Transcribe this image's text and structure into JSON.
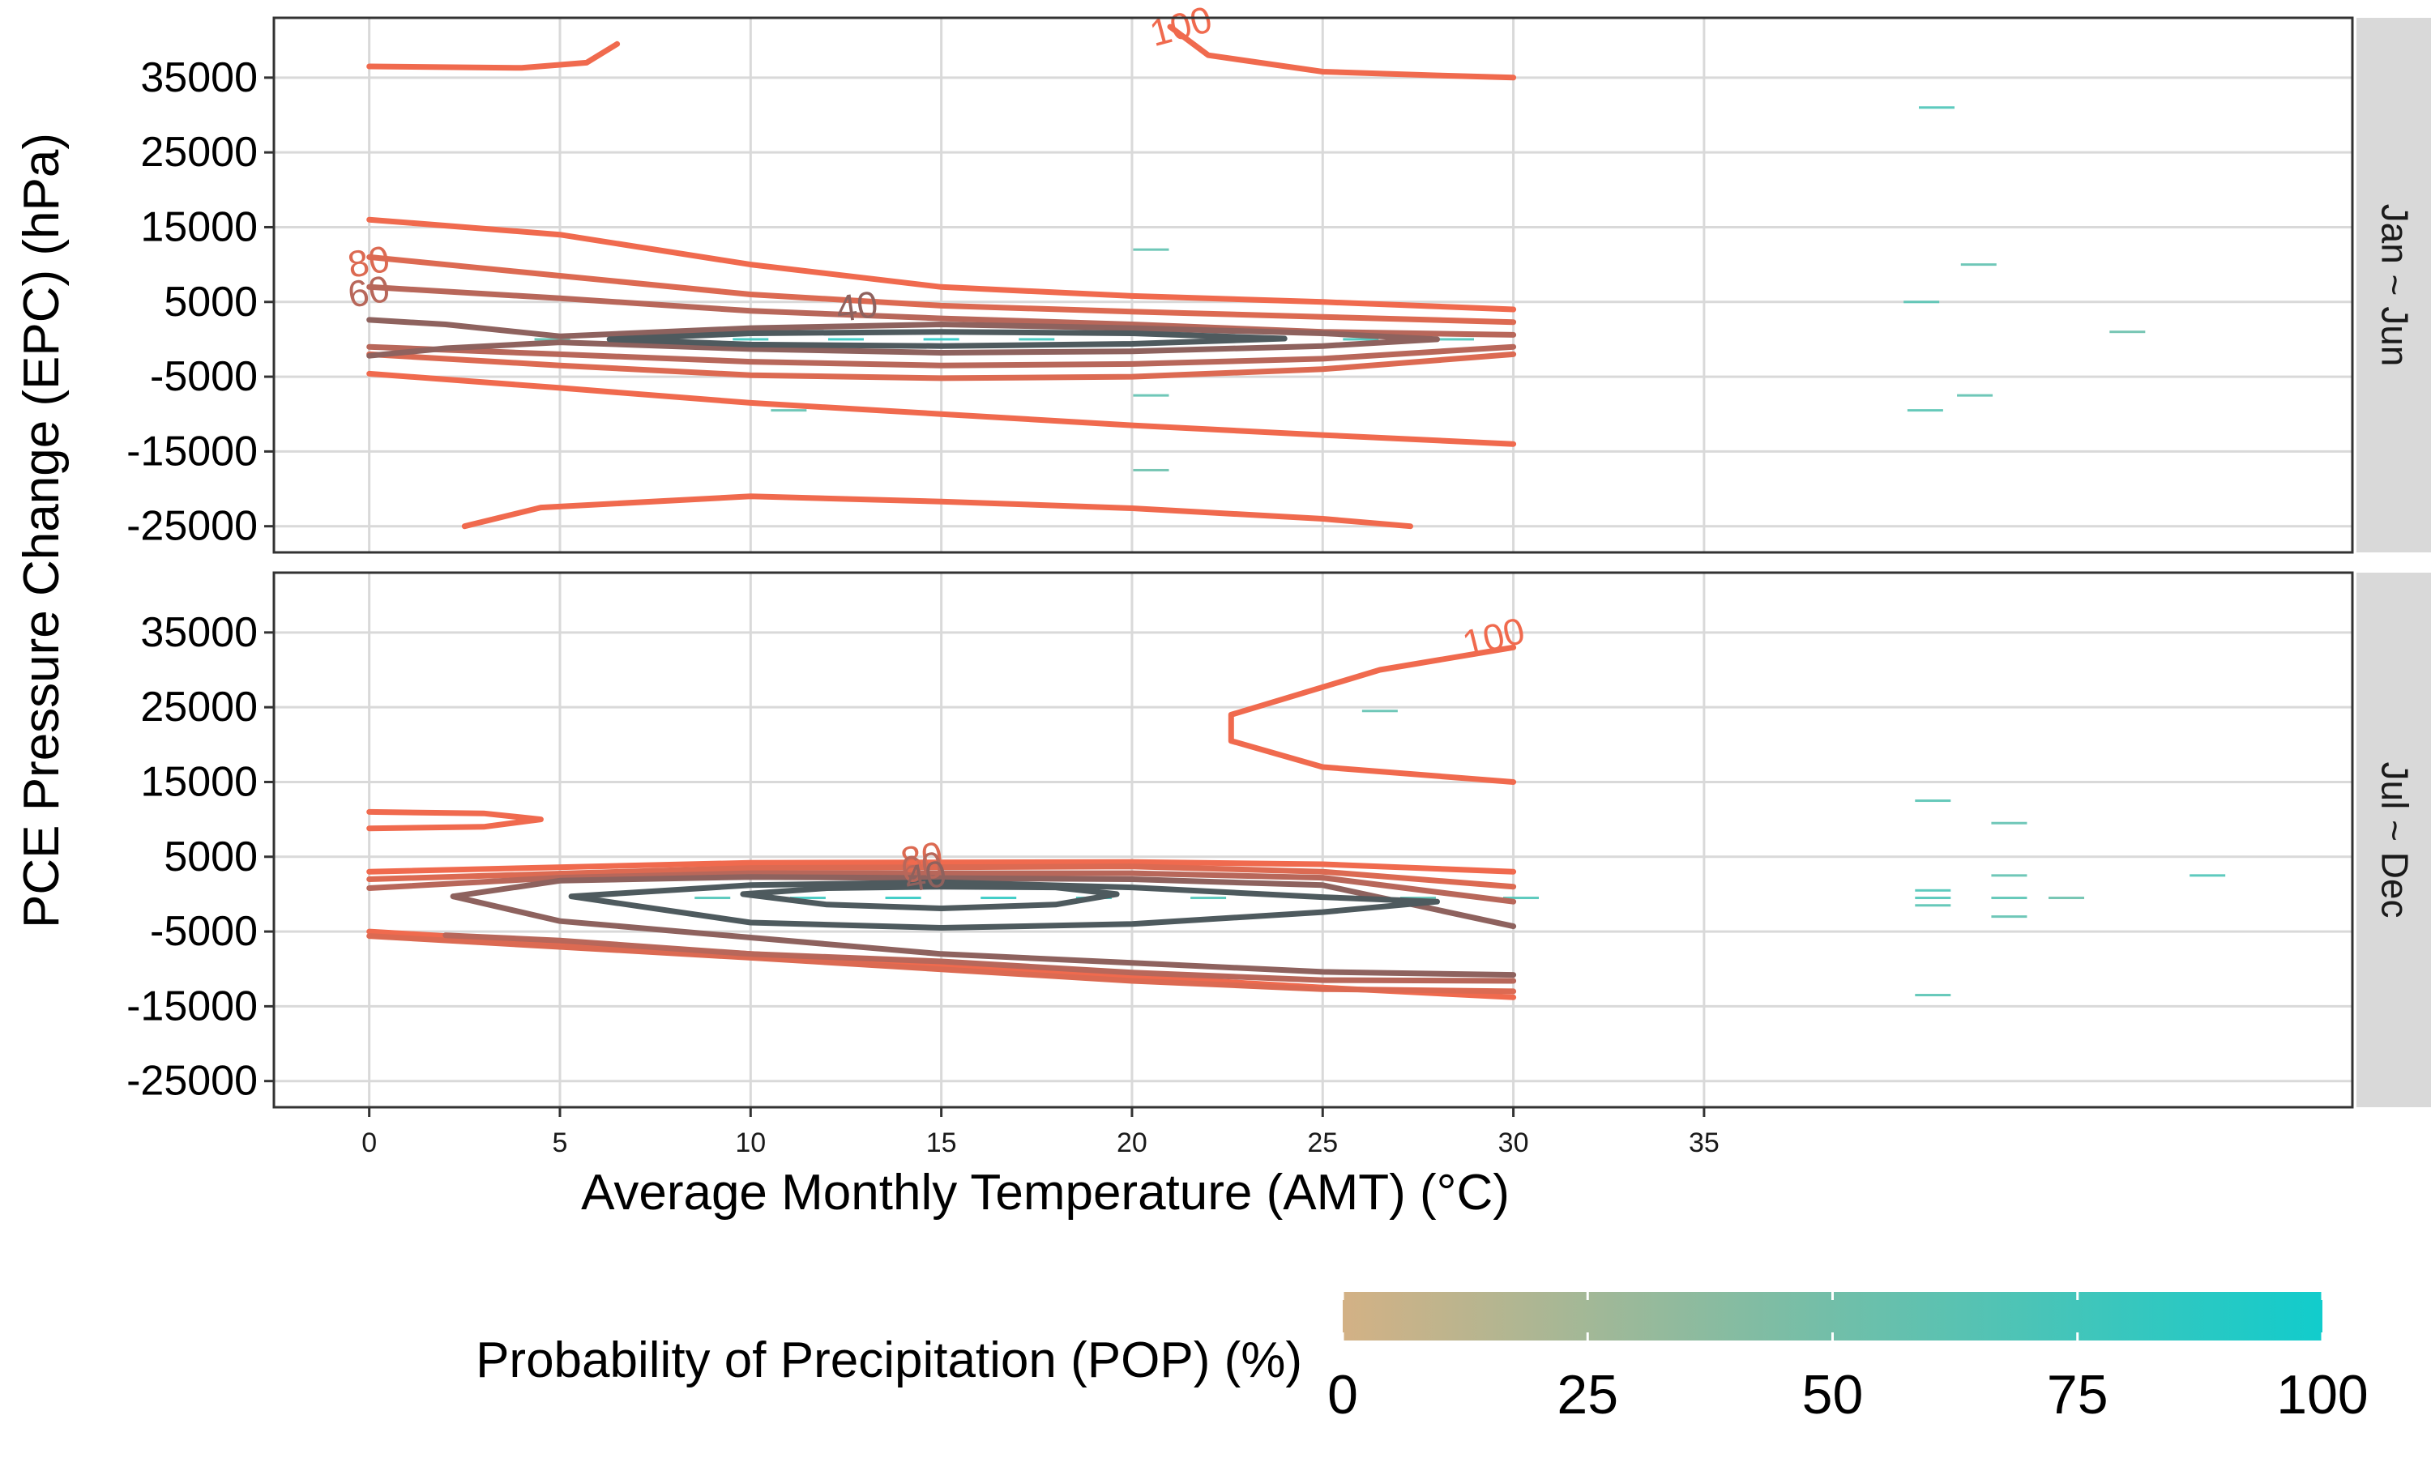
{
  "chart_data": {
    "type": "contour",
    "xlabel": "Average Monthly Temperature (AMT) (°C)",
    "ylabel": "PCE Pressure Change (EPC) (hPa)",
    "x_ticks": [
      0,
      5,
      10,
      15,
      20,
      25,
      30,
      35
    ],
    "y_ticks": [
      35000,
      25000,
      15000,
      5000,
      -5000,
      -15000,
      -25000
    ],
    "xlim": [
      -2.5,
      52
    ],
    "ylim": [
      -28500,
      43000
    ],
    "grid": true,
    "legend": {
      "title": "Probability of Precipitation (POP) (%)",
      "position": "bottom",
      "scale": [
        0,
        100
      ],
      "ticks": [
        0,
        25,
        50,
        75,
        100
      ],
      "color_low": "#d3b185",
      "color_high": "#11cccc"
    },
    "contour_colors": {
      "100": "#f06a4e",
      "80": "#dc6a52",
      "60": "#b8675a",
      "40": "#8e625e",
      "20": "#4e5a5e"
    },
    "panels": [
      {
        "strip": "Jan ~ Jun",
        "contour_labels": [
          {
            "text": "100",
            "x": 21.3,
            "y": 41500,
            "angle": -15,
            "level": "100"
          },
          {
            "text": "80",
            "x": 0,
            "y": 10000,
            "angle": -10,
            "level": "80"
          },
          {
            "text": "60",
            "x": 0,
            "y": 6000,
            "angle": -10,
            "level": "60"
          },
          {
            "text": "40",
            "x": 12.8,
            "y": 4000,
            "angle": -8,
            "level": "40"
          }
        ],
        "contours": [
          {
            "level": "100",
            "points": [
              [
                0,
                36500
              ],
              [
                4,
                36300
              ],
              [
                5.7,
                37000
              ],
              [
                6.5,
                39500
              ]
            ]
          },
          {
            "level": "100",
            "points": [
              [
                21,
                41800
              ],
              [
                22,
                38000
              ],
              [
                25,
                35800
              ],
              [
                28,
                35300
              ],
              [
                30,
                35000
              ]
            ]
          },
          {
            "level": "100",
            "points": [
              [
                0,
                16000
              ],
              [
                5,
                14000
              ],
              [
                10,
                10000
              ],
              [
                15,
                7000
              ],
              [
                20,
                5800
              ],
              [
                25,
                5000
              ],
              [
                30,
                4000
              ]
            ]
          },
          {
            "level": "100",
            "points": [
              [
                0,
                -4600
              ],
              [
                5,
                -6500
              ],
              [
                10,
                -8500
              ],
              [
                15,
                -10000
              ],
              [
                20,
                -11500
              ],
              [
                25,
                -12800
              ],
              [
                30,
                -14000
              ]
            ]
          },
          {
            "level": "100",
            "points": [
              [
                2.5,
                -25000
              ],
              [
                4.5,
                -22500
              ],
              [
                10,
                -21000
              ],
              [
                15,
                -21700
              ],
              [
                20,
                -22600
              ],
              [
                25,
                -24000
              ],
              [
                27.3,
                -25000
              ]
            ]
          },
          {
            "level": "80",
            "points": [
              [
                0,
                11000
              ],
              [
                5,
                8500
              ],
              [
                10,
                6000
              ],
              [
                15,
                4500
              ],
              [
                20,
                3700
              ],
              [
                25,
                3000
              ],
              [
                30,
                2300
              ]
            ]
          },
          {
            "level": "80",
            "points": [
              [
                30,
                -2000
              ],
              [
                25,
                -4000
              ],
              [
                20,
                -5000
              ],
              [
                15,
                -5200
              ],
              [
                10,
                -4800
              ],
              [
                5,
                -3500
              ],
              [
                0,
                -2000
              ]
            ]
          },
          {
            "level": "60",
            "points": [
              [
                0,
                7000
              ],
              [
                5,
                5500
              ],
              [
                10,
                3800
              ],
              [
                15,
                2800
              ],
              [
                20,
                2000
              ],
              [
                25,
                1000
              ],
              [
                30,
                600
              ]
            ]
          },
          {
            "level": "60",
            "points": [
              [
                30,
                -1000
              ],
              [
                25,
                -2600
              ],
              [
                20,
                -3300
              ],
              [
                15,
                -3500
              ],
              [
                10,
                -3000
              ],
              [
                5,
                -2000
              ],
              [
                0,
                -1000
              ]
            ]
          },
          {
            "level": "40",
            "points": [
              [
                0,
                2600
              ],
              [
                2,
                2000
              ],
              [
                5,
                400
              ],
              [
                10,
                1500
              ],
              [
                15,
                2000
              ],
              [
                20,
                1500
              ],
              [
                25,
                800
              ],
              [
                28,
                0
              ],
              [
                25,
                -900
              ],
              [
                20,
                -1600
              ],
              [
                15,
                -1800
              ],
              [
                10,
                -1300
              ],
              [
                5,
                -400
              ],
              [
                2,
                -1200
              ],
              [
                0,
                -2200
              ]
            ]
          },
          {
            "level": "20",
            "points": [
              [
                6.3,
                0
              ],
              [
                10,
                800
              ],
              [
                15,
                1000
              ],
              [
                20,
                800
              ],
              [
                24,
                100
              ],
              [
                20,
                -600
              ],
              [
                15,
                -900
              ],
              [
                10,
                -700
              ],
              [
                6.3,
                0
              ]
            ]
          }
        ],
        "cells": [
          {
            "x": 20.5,
            "y": 12000,
            "v": 60
          },
          {
            "x": 20.5,
            "y": -7500,
            "v": 60
          },
          {
            "x": 20.5,
            "y": -17500,
            "v": 55
          },
          {
            "x": 11,
            "y": -9500,
            "v": 60
          },
          {
            "x": 40.7,
            "y": 5000,
            "v": 65
          },
          {
            "x": 41.1,
            "y": 31000,
            "v": 70
          },
          {
            "x": 42.2,
            "y": 10000,
            "v": 60
          },
          {
            "x": 40.8,
            "y": -9500,
            "v": 65
          },
          {
            "x": 42.1,
            "y": -7500,
            "v": 60
          },
          {
            "x": 46.1,
            "y": 1000,
            "v": 55
          },
          {
            "x": 7.5,
            "y": 0,
            "v": 75
          },
          {
            "x": 10,
            "y": 0,
            "v": 80
          },
          {
            "x": 12.5,
            "y": 0,
            "v": 85
          },
          {
            "x": 15,
            "y": 0,
            "v": 90
          },
          {
            "x": 17.5,
            "y": 0,
            "v": 80
          },
          {
            "x": 22.5,
            "y": 0,
            "v": 70
          },
          {
            "x": 26,
            "y": 0,
            "v": 75
          },
          {
            "x": 28.5,
            "y": 0,
            "v": 70
          },
          {
            "x": 4.8,
            "y": 0,
            "v": 60
          }
        ]
      },
      {
        "strip": "Jul ~ Dec",
        "contour_labels": [
          {
            "text": "100",
            "x": 29.5,
            "y": 34000,
            "angle": -14,
            "level": "100"
          },
          {
            "text": "80",
            "x": 14.5,
            "y": 4500,
            "angle": -10,
            "level": "80"
          },
          {
            "text": "60",
            "x": 14.5,
            "y": 3200,
            "angle": -10,
            "level": "60"
          },
          {
            "text": "40",
            "x": 14.6,
            "y": 2000,
            "angle": -10,
            "level": "40"
          }
        ],
        "contours": [
          {
            "level": "100",
            "points": [
              [
                30,
                33000
              ],
              [
                26.5,
                30000
              ],
              [
                22.6,
                24000
              ],
              [
                22.6,
                20500
              ],
              [
                25,
                17000
              ],
              [
                30,
                15000
              ]
            ]
          },
          {
            "level": "100",
            "points": [
              [
                0,
                11000
              ],
              [
                3,
                10800
              ],
              [
                4.5,
                10000
              ],
              [
                3,
                9000
              ],
              [
                0,
                8800
              ]
            ]
          },
          {
            "level": "100",
            "points": [
              [
                0,
                3000
              ],
              [
                10,
                4200
              ],
              [
                20,
                4300
              ],
              [
                25,
                4000
              ],
              [
                30,
                3000
              ]
            ]
          },
          {
            "level": "100",
            "points": [
              [
                0,
                -5000
              ],
              [
                10,
                -8000
              ],
              [
                20,
                -11000
              ],
              [
                25,
                -12500
              ],
              [
                30,
                -13800
              ]
            ]
          },
          {
            "level": "80",
            "points": [
              [
                0,
                2000
              ],
              [
                10,
                3500
              ],
              [
                20,
                3700
              ],
              [
                25,
                3000
              ],
              [
                30,
                1000
              ]
            ]
          },
          {
            "level": "80",
            "points": [
              [
                0,
                -5600
              ],
              [
                10,
                -8500
              ],
              [
                20,
                -11600
              ],
              [
                25,
                -12700
              ],
              [
                30,
                -13000
              ]
            ]
          },
          {
            "level": "60",
            "points": [
              [
                0,
                800
              ],
              [
                5,
                2200
              ],
              [
                10,
                2800
              ],
              [
                20,
                2800
              ],
              [
                25,
                2200
              ],
              [
                30,
                -1000
              ]
            ]
          },
          {
            "level": "60",
            "points": [
              [
                30,
                -11600
              ],
              [
                25,
                -11500
              ],
              [
                20,
                -10500
              ],
              [
                15,
                -9000
              ],
              [
                10,
                -8000
              ],
              [
                5,
                -6200
              ],
              [
                2,
                -5500
              ]
            ]
          },
          {
            "level": "40",
            "points": [
              [
                2.2,
                -300
              ],
              [
                5,
                1800
              ],
              [
                10,
                2300
              ],
              [
                20,
                2000
              ],
              [
                25,
                1200
              ],
              [
                30,
                -4300
              ]
            ]
          },
          {
            "level": "40",
            "points": [
              [
                30,
                -10800
              ],
              [
                25,
                -10400
              ],
              [
                20,
                -9200
              ],
              [
                15,
                -8000
              ],
              [
                10,
                -5800
              ],
              [
                5,
                -3600
              ],
              [
                2.2,
                -300
              ]
            ]
          },
          {
            "level": "20",
            "points": [
              [
                5.3,
                -300
              ],
              [
                10,
                1200
              ],
              [
                15,
                1600
              ],
              [
                20,
                900
              ],
              [
                25,
                -400
              ],
              [
                28,
                -1000
              ],
              [
                25,
                -2400
              ],
              [
                20,
                -4000
              ],
              [
                15,
                -4500
              ],
              [
                10,
                -3800
              ],
              [
                5.3,
                -300
              ]
            ]
          },
          {
            "level": "20",
            "points": [
              [
                9.8,
                0
              ],
              [
                12,
                800
              ],
              [
                15,
                1000
              ],
              [
                18,
                900
              ],
              [
                19.6,
                0
              ],
              [
                18,
                -1400
              ],
              [
                15,
                -1900
              ],
              [
                12,
                -1400
              ],
              [
                9.8,
                0
              ]
            ]
          }
        ],
        "cells": [
          {
            "x": 26.5,
            "y": 24500,
            "v": 60
          },
          {
            "x": 41,
            "y": 12500,
            "v": 65
          },
          {
            "x": 43,
            "y": 9500,
            "v": 60
          },
          {
            "x": 41,
            "y": 500,
            "v": 70
          },
          {
            "x": 41,
            "y": -500,
            "v": 70
          },
          {
            "x": 41,
            "y": -1500,
            "v": 65
          },
          {
            "x": 43,
            "y": 2500,
            "v": 60
          },
          {
            "x": 43,
            "y": -500,
            "v": 65
          },
          {
            "x": 43,
            "y": -3000,
            "v": 60
          },
          {
            "x": 44.5,
            "y": -500,
            "v": 55
          },
          {
            "x": 48.2,
            "y": 2500,
            "v": 70
          },
          {
            "x": 41,
            "y": -13500,
            "v": 65
          },
          {
            "x": 9,
            "y": -500,
            "v": 70
          },
          {
            "x": 11.5,
            "y": -500,
            "v": 80
          },
          {
            "x": 14,
            "y": -500,
            "v": 85
          },
          {
            "x": 16.5,
            "y": -500,
            "v": 85
          },
          {
            "x": 19,
            "y": -500,
            "v": 80
          },
          {
            "x": 22,
            "y": -500,
            "v": 70
          },
          {
            "x": 25,
            "y": -500,
            "v": 70
          },
          {
            "x": 27.5,
            "y": -500,
            "v": 65
          },
          {
            "x": 30.2,
            "y": -500,
            "v": 70
          }
        ]
      }
    ]
  }
}
